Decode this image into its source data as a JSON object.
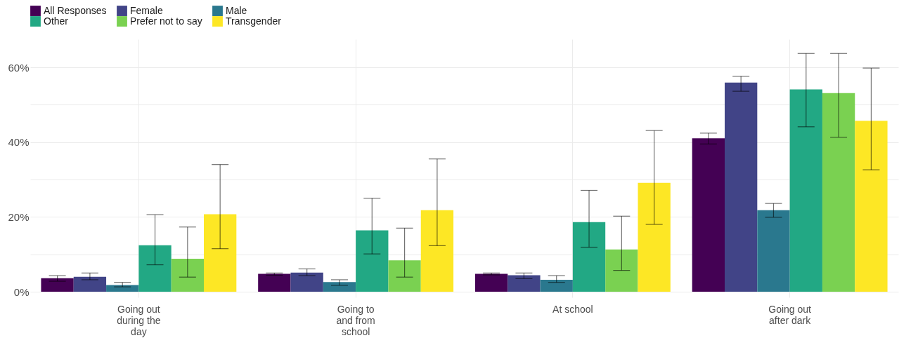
{
  "chart_data": {
    "type": "bar",
    "categories": [
      "Going out during the day",
      "Going to and from school",
      "At school",
      "Going out after dark"
    ],
    "series": [
      {
        "name": "All Responses",
        "color": "#440154",
        "values": [
          3.6,
          4.8,
          4.8,
          41.0
        ],
        "errors": [
          [
            2.8,
            4.3
          ],
          [
            4.4,
            5.0
          ],
          [
            4.5,
            5.0
          ],
          [
            39.5,
            42.4
          ]
        ]
      },
      {
        "name": "Female",
        "color": "#414487",
        "values": [
          4.0,
          5.1,
          4.4,
          55.9
        ],
        "errors": [
          [
            3.2,
            5.0
          ],
          [
            4.3,
            6.1
          ],
          [
            3.5,
            5.0
          ],
          [
            53.6,
            57.6
          ]
        ]
      },
      {
        "name": "Male",
        "color": "#2a788e",
        "values": [
          1.8,
          2.6,
          3.2,
          21.8
        ],
        "errors": [
          [
            1.3,
            2.5
          ],
          [
            1.7,
            3.2
          ],
          [
            2.5,
            4.3
          ],
          [
            19.9,
            23.6
          ]
        ]
      },
      {
        "name": "Other",
        "color": "#22a884",
        "values": [
          12.4,
          16.4,
          18.6,
          54.1
        ],
        "errors": [
          [
            7.2,
            20.6
          ],
          [
            10.1,
            25.0
          ],
          [
            11.9,
            27.1
          ],
          [
            44.1,
            63.7
          ]
        ]
      },
      {
        "name": "Prefer not to say",
        "color": "#7ad151",
        "values": [
          8.8,
          8.4,
          11.3,
          53.1
        ],
        "errors": [
          [
            3.9,
            17.3
          ],
          [
            3.9,
            17.0
          ],
          [
            5.7,
            20.2
          ],
          [
            41.3,
            63.7
          ]
        ]
      },
      {
        "name": "Transgender",
        "color": "#fde725",
        "values": [
          20.7,
          21.8,
          29.1,
          45.7
        ],
        "errors": [
          [
            11.5,
            34.0
          ],
          [
            12.3,
            35.5
          ],
          [
            18.0,
            43.1
          ],
          [
            32.6,
            59.8
          ]
        ]
      }
    ],
    "ylim": [
      -1.5,
      67.5
    ],
    "yticks": [
      {
        "value": 0,
        "label": "0%"
      },
      {
        "value": 10,
        "label": null
      },
      {
        "value": 20,
        "label": "20%"
      },
      {
        "value": 30,
        "label": null
      },
      {
        "value": 40,
        "label": "40%"
      },
      {
        "value": 50,
        "label": null
      },
      {
        "value": 60,
        "label": "60%"
      }
    ],
    "grid": true,
    "legend": "top"
  }
}
